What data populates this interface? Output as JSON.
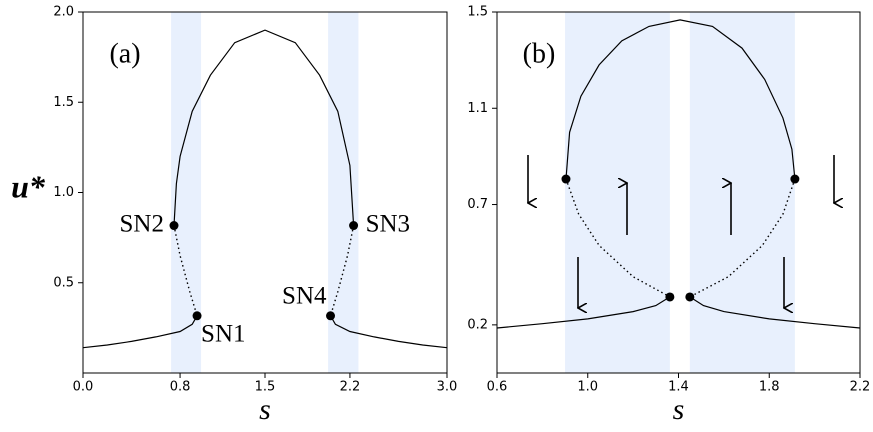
{
  "chart_data": [
    {
      "type": "line",
      "panel_label": "(a)",
      "y_label": "u*",
      "x_label": "s",
      "xlim": [
        0,
        3
      ],
      "ylim": [
        0,
        2
      ],
      "xticks": [
        {
          "value": 0,
          "label": "0.0"
        },
        0.8,
        1.5,
        2.2,
        {
          "value": 3,
          "label": "3.0"
        }
      ],
      "yticks": [
        0.5,
        {
          "value": 1,
          "label": "1.0"
        },
        1.5,
        {
          "value": 2,
          "label": "2.0"
        }
      ],
      "bands": [
        [
          0.726,
          0.973
        ],
        [
          2.02,
          2.27
        ]
      ],
      "band_color": "#e8f0fd",
      "series": [
        {
          "color": "#000000",
          "style": "solid",
          "x": [
            0,
            0.2,
            0.4,
            0.6,
            0.8,
            0.9,
            0.94
          ],
          "values": [
            0.14,
            0.155,
            0.175,
            0.2,
            0.23,
            0.27,
            0.317
          ]
        },
        {
          "color": "#000000",
          "style": "solid",
          "x": [
            2.04,
            2.08,
            2.2,
            2.4,
            2.6,
            2.8,
            3.0
          ],
          "values": [
            0.317,
            0.27,
            0.23,
            0.2,
            0.175,
            0.155,
            0.14
          ]
        },
        {
          "color": "#000000",
          "style": "solid",
          "x": [
            0.75,
            0.77,
            0.8,
            0.9,
            1.05,
            1.25,
            1.5,
            1.75,
            1.95,
            2.1,
            2.2,
            2.23
          ],
          "values": [
            0.817,
            1.05,
            1.2,
            1.45,
            1.65,
            1.83,
            1.9,
            1.83,
            1.65,
            1.45,
            1.15,
            0.817
          ]
        },
        {
          "color": "#000000",
          "style": "dotted",
          "x": [
            0.75,
            0.8,
            0.88,
            0.94
          ],
          "values": [
            0.817,
            0.65,
            0.45,
            0.317
          ]
        },
        {
          "color": "#000000",
          "style": "dotted",
          "x": [
            2.23,
            2.18,
            2.1,
            2.04
          ],
          "values": [
            0.817,
            0.65,
            0.45,
            0.317
          ]
        }
      ],
      "points": [
        {
          "x": 0.75,
          "y": 0.817,
          "label": "SN2"
        },
        {
          "x": 0.94,
          "y": 0.317,
          "label": "SN1"
        },
        {
          "x": 2.04,
          "y": 0.317,
          "label": "SN4"
        },
        {
          "x": 2.23,
          "y": 0.817,
          "label": "SN3"
        }
      ]
    },
    {
      "type": "line",
      "panel_label": "(b)",
      "x_label": "s",
      "xlim": [
        0.6,
        2.2
      ],
      "ylim": [
        0,
        1.5
      ],
      "xticks": [
        0.6,
        {
          "value": 1,
          "label": "1.0"
        },
        1.4,
        1.8,
        2.2
      ],
      "yticks": [
        0.2,
        0.7,
        1.1,
        1.5
      ],
      "bands": [
        [
          0.9,
          1.362
        ],
        [
          1.45,
          1.913
        ]
      ],
      "band_color": "#e8f0fd",
      "series": [
        {
          "color": "#000000",
          "style": "solid",
          "x": [
            0.6,
            0.8,
            1.0,
            1.2,
            1.3,
            1.362
          ],
          "values": [
            0.187,
            0.205,
            0.225,
            0.255,
            0.28,
            0.316
          ]
        },
        {
          "color": "#000000",
          "style": "solid",
          "x": [
            1.45,
            1.51,
            1.6,
            1.8,
            2.0,
            2.2
          ],
          "values": [
            0.316,
            0.28,
            0.255,
            0.225,
            0.205,
            0.187
          ]
        },
        {
          "color": "#000000",
          "style": "solid",
          "x": [
            0.904,
            0.92,
            0.97,
            1.05,
            1.15,
            1.27,
            1.407,
            1.55,
            1.68,
            1.78,
            1.86,
            1.9,
            1.913
          ],
          "values": [
            0.806,
            1.0,
            1.15,
            1.28,
            1.38,
            1.44,
            1.467,
            1.44,
            1.35,
            1.22,
            1.06,
            0.93,
            0.806
          ]
        },
        {
          "color": "#000000",
          "style": "dotted",
          "x": [
            0.904,
            0.96,
            1.05,
            1.2,
            1.362
          ],
          "values": [
            0.806,
            0.66,
            0.53,
            0.4,
            0.316
          ]
        },
        {
          "color": "#000000",
          "style": "dotted",
          "x": [
            1.913,
            1.86,
            1.77,
            1.62,
            1.45
          ],
          "values": [
            0.806,
            0.66,
            0.53,
            0.4,
            0.316
          ]
        }
      ],
      "points": [
        {
          "x": 0.904,
          "y": 0.806
        },
        {
          "x": 1.362,
          "y": 0.316
        },
        {
          "x": 1.45,
          "y": 0.316
        },
        {
          "x": 1.913,
          "y": 0.806
        }
      ]
    }
  ]
}
